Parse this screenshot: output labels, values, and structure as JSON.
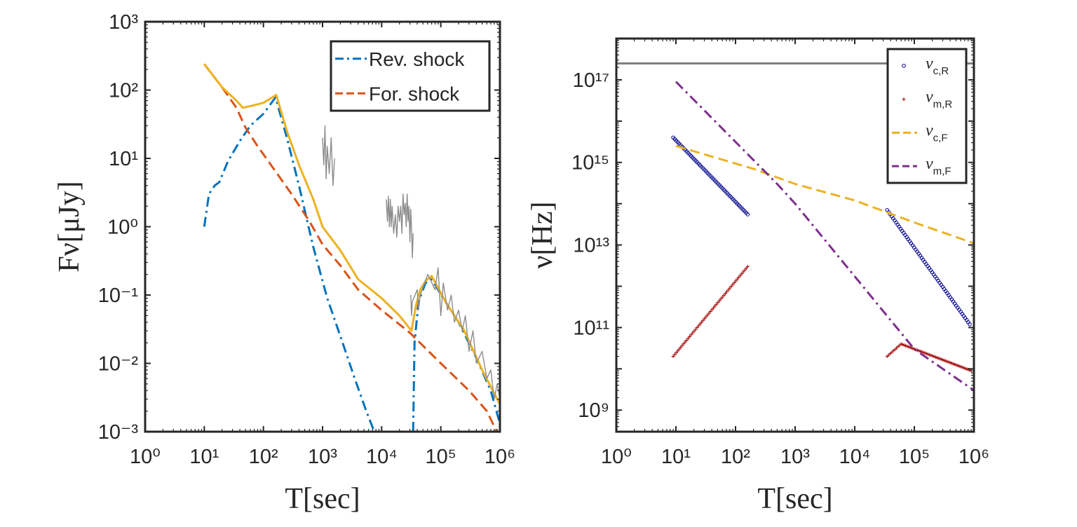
{
  "chart_data": [
    {
      "type": "line",
      "xlabel": "T[sec]",
      "ylabel": "Fν[μJy]",
      "xscale": "log",
      "yscale": "log",
      "xlim": [
        1,
        1000000
      ],
      "ylim": [
        0.001,
        1000
      ],
      "xticks": [
        "10⁰",
        "10¹",
        "10²",
        "10³",
        "10⁴",
        "10⁵",
        "10⁶"
      ],
      "yticks": [
        "10⁻³",
        "10⁻²",
        "10⁻¹",
        "10⁰",
        "10¹",
        "10²",
        "10³"
      ],
      "legend_position": "top-right",
      "series": [
        {
          "name": "Rev. shock",
          "style": "dash-dot",
          "color": "#0072BD",
          "segments": [
            [
              [
                10,
                1.0
              ],
              [
                12,
                3.0
              ],
              [
                15,
                4.0
              ],
              [
                18,
                4.5
              ],
              [
                25,
                9
              ],
              [
                40,
                18
              ],
              [
                60,
                30
              ],
              [
                100,
                45
              ],
              [
                160,
                78
              ],
              [
                250,
                20
              ],
              [
                400,
                4
              ],
              [
                700,
                0.5
              ],
              [
                1200,
                0.09
              ],
              [
                2000,
                0.025
              ],
              [
                3500,
                0.006
              ],
              [
                5500,
                0.002
              ],
              [
                7500,
                0.001
              ]
            ],
            [
              [
                34000,
                0.001
              ],
              [
                36000,
                0.02
              ],
              [
                42000,
                0.08
              ],
              [
                55000,
                0.15
              ],
              [
                70000,
                0.17
              ],
              [
                120000,
                0.08
              ],
              [
                200000,
                0.04
              ],
              [
                400000,
                0.012
              ],
              [
                700000,
                0.004
              ],
              [
                1000000,
                0.0013
              ]
            ]
          ]
        },
        {
          "name": "For. shock",
          "style": "dashed",
          "color": "#D95319",
          "segments": [
            [
              [
                10,
                240
              ],
              [
                20,
                110
              ],
              [
                35,
                55
              ],
              [
                50,
                28
              ],
              [
                80,
                15
              ],
              [
                150,
                7
              ],
              [
                300,
                3
              ],
              [
                600,
                1.2
              ],
              [
                1000,
                0.55
              ],
              [
                2000,
                0.27
              ],
              [
                4000,
                0.12
              ],
              [
                10000,
                0.06
              ],
              [
                30000,
                0.028
              ],
              [
                100000,
                0.01
              ],
              [
                300000,
                0.004
              ],
              [
                600000,
                0.002
              ],
              [
                800000,
                0.0012
              ],
              [
                1000000,
                0.0008
              ]
            ]
          ]
        },
        {
          "name": "",
          "style": "solid",
          "color": "#EDB120",
          "segments": [
            [
              [
                10,
                240
              ],
              [
                20,
                110
              ],
              [
                35,
                70
              ],
              [
                45,
                55
              ],
              [
                70,
                60
              ],
              [
                100,
                65
              ],
              [
                165,
                85
              ],
              [
                250,
                25
              ],
              [
                400,
                8
              ],
              [
                700,
                2.5
              ],
              [
                1000,
                1.0
              ],
              [
                2000,
                0.45
              ],
              [
                4000,
                0.17
              ],
              [
                10000,
                0.09
              ],
              [
                20000,
                0.05
              ],
              [
                32000,
                0.03
              ],
              [
                38000,
                0.07
              ],
              [
                45000,
                0.12
              ],
              [
                55000,
                0.16
              ],
              [
                70000,
                0.19
              ],
              [
                120000,
                0.08
              ],
              [
                250000,
                0.03
              ],
              [
                500000,
                0.008
              ],
              [
                1000000,
                0.0025
              ]
            ]
          ]
        },
        {
          "name": "",
          "style": "solid",
          "color": "#8c8c8c",
          "kind": "observed",
          "segments": [
            [
              [
                1000,
                20
              ],
              [
                1050,
                8
              ],
              [
                1100,
                30
              ],
              [
                1150,
                5
              ],
              [
                1200,
                15
              ],
              [
                1300,
                6
              ],
              [
                1400,
                20
              ],
              [
                1500,
                4
              ],
              [
                1600,
                10
              ]
            ],
            [
              [
                12000,
                2.5
              ],
              [
                12500,
                1.2
              ],
              [
                13000,
                2.8
              ],
              [
                13500,
                1.0
              ],
              [
                14000,
                2.5
              ],
              [
                14500,
                1.0
              ],
              [
                15000,
                2.0
              ],
              [
                16000,
                0.8
              ],
              [
                17000,
                1.5
              ],
              [
                18000,
                0.7
              ],
              [
                19000,
                2.0
              ],
              [
                20000,
                1.2
              ],
              [
                21000,
                2.0
              ],
              [
                22000,
                0.8
              ],
              [
                23000,
                3.0
              ],
              [
                24000,
                1.5
              ],
              [
                25000,
                2.2
              ],
              [
                26000,
                1.0
              ],
              [
                27000,
                3.0
              ],
              [
                28000,
                1.2
              ],
              [
                29000,
                2.0
              ],
              [
                30000,
                0.6
              ],
              [
                31000,
                1.8
              ],
              [
                32000,
                1.0
              ],
              [
                33000,
                0.35
              ],
              [
                34000,
                0.8
              ]
            ],
            [
              [
                31000,
                0.1
              ],
              [
                32000,
                0.05
              ],
              [
                33000,
                0.08
              ],
              [
                40000,
                0.12
              ],
              [
                42000,
                0.06
              ],
              [
                45000,
                0.1
              ],
              [
                60000,
                0.2
              ],
              [
                80000,
                0.12
              ],
              [
                90000,
                0.25
              ],
              [
                100000,
                0.05
              ],
              [
                110000,
                0.15
              ],
              [
                130000,
                0.06
              ],
              [
                150000,
                0.1
              ],
              [
                170000,
                0.04
              ],
              [
                200000,
                0.06
              ],
              [
                230000,
                0.03
              ],
              [
                260000,
                0.05
              ],
              [
                300000,
                0.015
              ],
              [
                350000,
                0.03
              ],
              [
                400000,
                0.01
              ],
              [
                500000,
                0.015
              ],
              [
                600000,
                0.006
              ],
              [
                700000,
                0.008
              ],
              [
                800000,
                0.003
              ],
              [
                900000,
                0.005
              ],
              [
                1000000,
                0.003
              ]
            ]
          ]
        }
      ]
    },
    {
      "type": "scatter",
      "xlabel": "T[sec]",
      "ylabel": "ν[Hz]",
      "xscale": "log",
      "yscale": "log",
      "xlim": [
        1,
        1000000
      ],
      "ylim": [
        300000000,
        1000000000000000000
      ],
      "xticks": [
        "10⁰",
        "10¹",
        "10²",
        "10³",
        "10⁴",
        "10⁵",
        "10⁶"
      ],
      "yticks": [
        "10⁹",
        "10¹¹",
        "10¹³",
        "10¹⁵",
        "10¹⁷"
      ],
      "legend_position": "top-right",
      "reference_line": {
        "y": 250000000000000000,
        "color": "#808080"
      },
      "series": [
        {
          "name": "νc,R",
          "marker": "circle",
          "color": "#00008B",
          "segments": [
            [
              [
                9,
                4000000000000000
              ],
              [
                160,
                55000000000000
              ]
            ],
            [
              [
                35000,
                70000000000000
              ],
              [
                850000,
                120000000000
              ]
            ]
          ]
        },
        {
          "name": "νm,R",
          "marker": "plus",
          "color": "#A00000",
          "segments": [
            [
              [
                9,
                20000000000
              ],
              [
                160,
                3000000000000
              ]
            ],
            [
              [
                35000,
                20000000000
              ],
              [
                60000,
                40000000000
              ],
              [
                900000,
                9000000000
              ]
            ]
          ]
        },
        {
          "name": "νc,F",
          "style": "dashed",
          "color": "#EDB120",
          "segments": [
            [
              [
                10,
                2500000000000000
              ],
              [
                200,
                700000000000000
              ],
              [
                1000,
                300000000000000
              ],
              [
                10000,
                120000000000000
              ],
              [
                100000,
                35000000000000
              ],
              [
                1000000,
                11000000000000
              ]
            ]
          ]
        },
        {
          "name": "νm,F",
          "style": "dash-dot",
          "color": "#7E2F8E",
          "segments": [
            [
              [
                10,
                90000000000000000
              ],
              [
                500,
                300000000000000
              ],
              [
                1000,
                100000000000000
              ],
              [
                100000,
                30000000000
              ],
              [
                1000000,
                3000000000
              ]
            ]
          ]
        }
      ]
    }
  ]
}
